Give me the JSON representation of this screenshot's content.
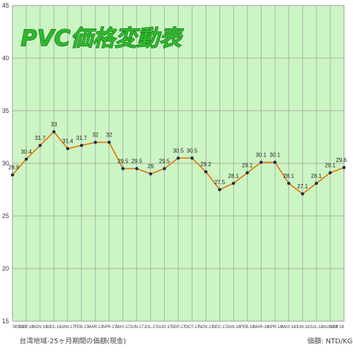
{
  "chart_data": {
    "type": "line",
    "title": "PVC価格変動表",
    "categories": [
      "SEP-16",
      "OCT-16",
      "NOV-16",
      "DEC-16",
      "JAN-17",
      "FEB-17",
      "MAR-17",
      "APR-17",
      "MAY-17",
      "JUN-17",
      "JUL-17",
      "AUG-17",
      "SEP-17",
      "OCT-17",
      "NOV-17",
      "DEC-17",
      "JAN-18",
      "FEB-18",
      "MAR-18",
      "APR-18",
      "MAY-18",
      "JUN-18",
      "JUL-18",
      "AUG-18",
      "SEP-18"
    ],
    "values": [
      28.9,
      30.4,
      31.7,
      33,
      31.4,
      31.7,
      32,
      32,
      29.5,
      29.5,
      29,
      29.5,
      30.5,
      30.5,
      29.2,
      27.5,
      28.1,
      29.1,
      30.1,
      30.1,
      28.1,
      27.1,
      28.1,
      29.1,
      29.6
    ],
    "ylim": [
      15,
      45
    ],
    "yticks": [
      15,
      20,
      25,
      30,
      35,
      40,
      45
    ],
    "grid": true,
    "line_color": "#e07a10",
    "marker_color": "#1a2e4a",
    "plot_background": "#ccf5c4",
    "grid_color": "#9a9a9a",
    "footer_left": "台湾地域-25ヶ月期間の価額(現金)",
    "footer_right": "価額: NTD/KG"
  }
}
